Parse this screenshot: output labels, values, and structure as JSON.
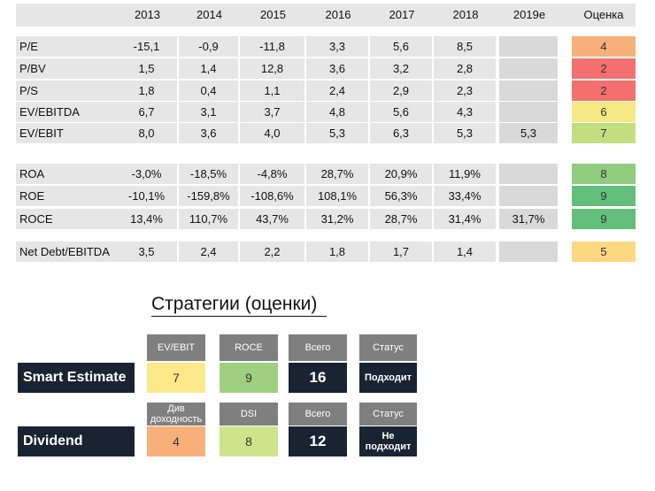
{
  "table": {
    "years": [
      "2013",
      "2014",
      "2015",
      "2016",
      "2017",
      "2018",
      "2019e"
    ],
    "rating_header": "Оценка",
    "groups": [
      [
        {
          "label": "P/E",
          "values": [
            "-15,1",
            "-0,9",
            "-11,8",
            "3,3",
            "5,6",
            "8,5",
            ""
          ],
          "rating": "4",
          "rating_color": "#f8b07a"
        },
        {
          "label": "P/BV",
          "values": [
            "1,5",
            "1,4",
            "12,8",
            "3,6",
            "3,2",
            "2,8",
            ""
          ],
          "rating": "2",
          "rating_color": "#f4706f"
        },
        {
          "label": "P/S",
          "values": [
            "1,8",
            "0,4",
            "1,1",
            "2,4",
            "2,9",
            "2,3",
            ""
          ],
          "rating": "2",
          "rating_color": "#f4706f"
        },
        {
          "label": "EV/EBITDA",
          "values": [
            "6,7",
            "3,1",
            "3,7",
            "4,8",
            "5,6",
            "4,3",
            ""
          ],
          "rating": "6",
          "rating_color": "#f5e984"
        },
        {
          "label": "EV/EBIT",
          "values": [
            "8,0",
            "3,6",
            "4,0",
            "5,3",
            "6,3",
            "5,3",
            "5,3"
          ],
          "rating": "7",
          "rating_color": "#c3de80"
        }
      ],
      [
        {
          "label": "ROA",
          "values": [
            "-3,0%",
            "-18,5%",
            "-4,8%",
            "28,7%",
            "20,9%",
            "11,9%",
            ""
          ],
          "rating": "8",
          "rating_color": "#8fcc7e"
        },
        {
          "label": "ROE",
          "values": [
            "-10,1%",
            "-159,8%",
            "-108,6%",
            "108,1%",
            "56,3%",
            "33,4%",
            ""
          ],
          "rating": "9",
          "rating_color": "#63be7b"
        },
        {
          "label": "ROCE",
          "values": [
            "13,4%",
            "110,7%",
            "43,7%",
            "31,2%",
            "28,7%",
            "31,4%",
            "31,7%"
          ],
          "rating": "9",
          "rating_color": "#63be7b"
        }
      ],
      [
        {
          "label": "Net Debt/EBITDA",
          "values": [
            "3,5",
            "2,4",
            "2,2",
            "1,8",
            "1,7",
            "1,4",
            ""
          ],
          "rating": "5",
          "rating_color": "#fdd880"
        }
      ]
    ]
  },
  "strategies": {
    "title": "Стратегии (оценки)",
    "items": [
      {
        "name": "Smart Estimate",
        "c1_label": "EV/EBIT",
        "c1_value": "7",
        "c1_color": "#fde98a",
        "c2_label": "ROCE",
        "c2_value": "9",
        "c2_color": "#9fd07f",
        "total_label": "Всего",
        "total_value": "16",
        "status_label": "Статус",
        "status_value": "Подходит"
      },
      {
        "name": "Dividend",
        "c1_label": "Див доходность",
        "c1_value": "4",
        "c1_color": "#f8b07a",
        "c2_label": "DSI",
        "c2_value": "8",
        "c2_color": "#cde48a",
        "total_label": "Всего",
        "total_value": "12",
        "status_label": "Статус",
        "status_value": "Не подходит"
      }
    ]
  }
}
